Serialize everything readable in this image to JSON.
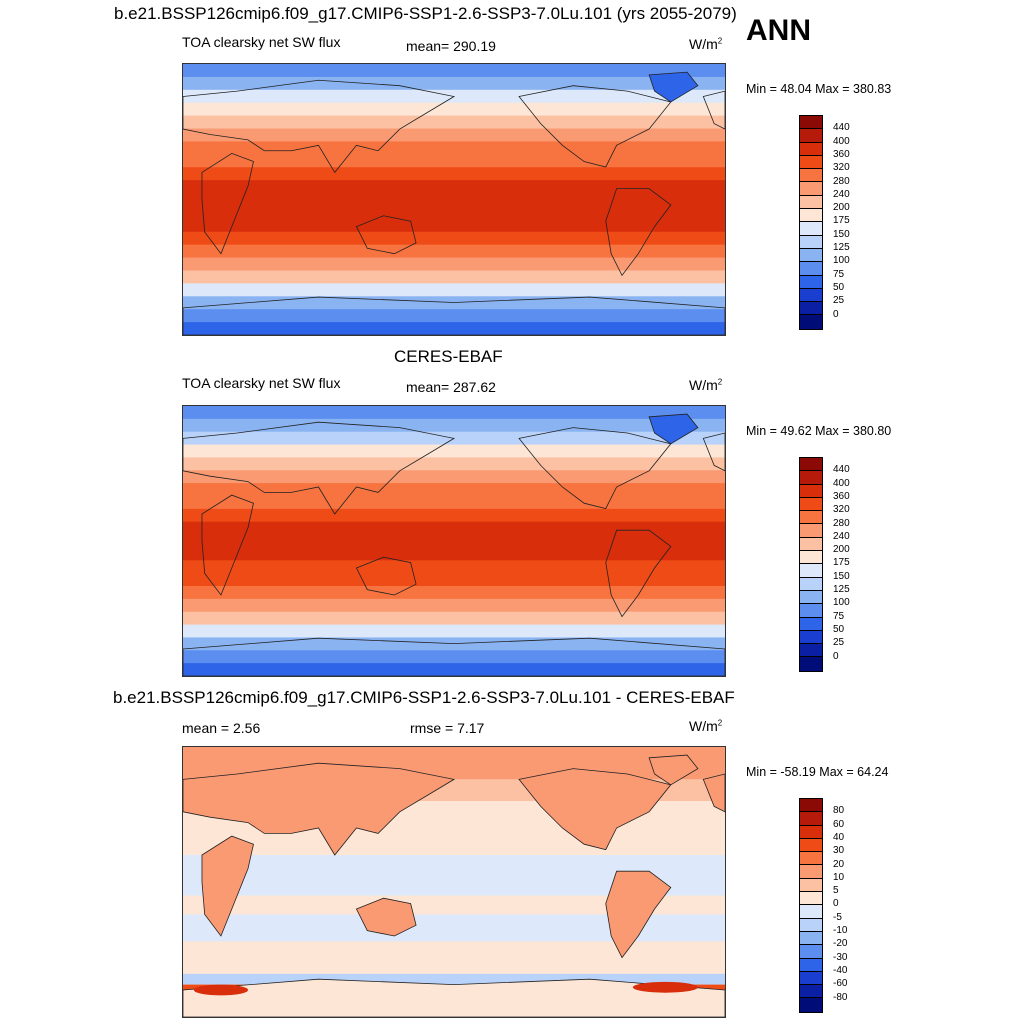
{
  "header": {
    "title": "b.e21.BSSP126cmip6.f09_g17.CMIP6-SSP1-2.6-SSP3-7.0Lu.101 (yrs 2055-2079)",
    "season": "ANN"
  },
  "panel1": {
    "variable": "TOA clearsky net SW flux",
    "mean": "mean= 290.19",
    "units": "W/m",
    "units_sup": "2",
    "minmax": "Min =  48.04 Max = 380.83"
  },
  "panel2": {
    "title": "CERES-EBAF",
    "variable": "TOA clearsky net SW flux",
    "mean": "mean= 287.62",
    "units": "W/m",
    "units_sup": "2",
    "minmax": "Min =  49.62 Max = 380.80"
  },
  "panel3": {
    "title": "b.e21.BSSP126cmip6.f09_g17.CMIP6-SSP1-2.6-SSP3-7.0Lu.101 - CERES-EBAF",
    "mean": "mean =   2.56",
    "rmse": "rmse =   7.17",
    "units": "W/m",
    "units_sup": "2",
    "minmax": "Min = -58.19 Max =  64.24"
  },
  "chart_data": [
    {
      "type": "heatmap",
      "title": "TOA clearsky net SW flux",
      "units": "W/m2",
      "mean": 290.19,
      "min": 48.04,
      "max": 380.83,
      "colorbar_levels": [
        "440",
        "400",
        "360",
        "320",
        "280",
        "240",
        "200",
        "175",
        "150",
        "125",
        "100",
        "75",
        "50",
        "25",
        "0"
      ],
      "colorbar_colors": [
        "#8b0a06",
        "#b51a0b",
        "#d82e0c",
        "#ef4b17",
        "#f7733f",
        "#fa9a73",
        "#fcc1a2",
        "#fde6d5",
        "#dde9fb",
        "#b8d2f9",
        "#8ab3f2",
        "#5c8ef0",
        "#2d64e8",
        "#1a3fd0",
        "#0b1fa5",
        "#000c78"
      ],
      "latitude_band_values": [
        95,
        110,
        150,
        185,
        215,
        250,
        285,
        315,
        345,
        365,
        375,
        372,
        360,
        340,
        305,
        265,
        215,
        170,
        120,
        85,
        70
      ]
    },
    {
      "type": "heatmap",
      "title": "CERES-EBAF",
      "units": "W/m2",
      "mean": 287.62,
      "min": 49.62,
      "max": 380.8,
      "colorbar_levels": [
        "440",
        "400",
        "360",
        "320",
        "280",
        "240",
        "200",
        "175",
        "150",
        "125",
        "100",
        "75",
        "50",
        "25",
        "0"
      ],
      "latitude_band_values": [
        90,
        105,
        148,
        183,
        212,
        248,
        283,
        313,
        343,
        363,
        374,
        371,
        358,
        338,
        303,
        262,
        212,
        168,
        118,
        82,
        68
      ]
    },
    {
      "type": "heatmap",
      "title": "b.e21.BSSP126cmip6.f09_g17.CMIP6-SSP1-2.6-SSP3-7.0Lu.101 - CERES-EBAF",
      "units": "W/m2",
      "mean": 2.56,
      "rmse": 7.17,
      "min": -58.19,
      "max": 64.24,
      "colorbar_levels": [
        "80",
        "60",
        "40",
        "30",
        "20",
        "10",
        "5",
        "0",
        "-5",
        "-10",
        "-20",
        "-30",
        "-40",
        "-60",
        "-80"
      ],
      "colorbar_colors": [
        "#8b0a06",
        "#b51a0b",
        "#d82e0c",
        "#ef4b17",
        "#f7733f",
        "#fa9a73",
        "#fcc1a2",
        "#fde6d5",
        "#dde9fb",
        "#b8d2f9",
        "#8ab3f2",
        "#5c8ef0",
        "#2d64e8",
        "#1a3fd0",
        "#0b1fa5",
        "#000c78"
      ]
    }
  ]
}
